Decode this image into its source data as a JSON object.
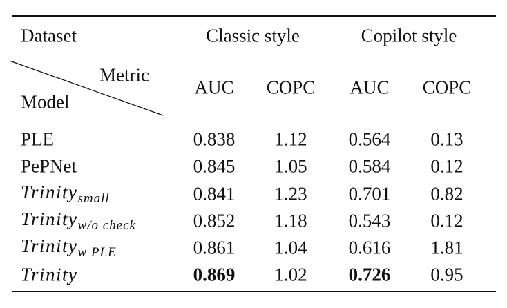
{
  "header": {
    "dataset": "Dataset",
    "groups": [
      "Classic style",
      "Copilot style"
    ],
    "metric_label": "Metric",
    "model_label": "Model",
    "metrics": [
      "AUC",
      "COPC",
      "AUC",
      "COPC"
    ]
  },
  "table": {
    "rows": [
      {
        "model": {
          "base": "PLE"
        },
        "cells": [
          "0.838",
          "1.12",
          "0.564",
          "0.13"
        ]
      },
      {
        "model": {
          "base": "PePNet"
        },
        "cells": [
          "0.845",
          "1.05",
          "0.584",
          "0.12"
        ]
      },
      {
        "model": {
          "base": "Trinity",
          "sub": "small"
        },
        "cells": [
          "0.841",
          "1.23",
          "0.701",
          "0.82"
        ]
      },
      {
        "model": {
          "base": "Trinity",
          "sub": "w/o check"
        },
        "cells": [
          "0.852",
          "1.18",
          "0.543",
          "0.12"
        ]
      },
      {
        "model": {
          "base": "Trinity",
          "sub": "w PLE"
        },
        "cells": [
          "0.861",
          "1.04",
          "0.616",
          "1.81"
        ]
      },
      {
        "model": {
          "base": "Trinity"
        },
        "cells": [
          "0.869",
          "1.02",
          "0.726",
          "0.95"
        ]
      }
    ]
  }
}
